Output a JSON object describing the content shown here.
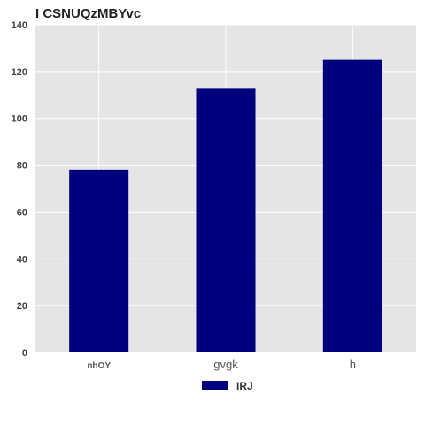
{
  "chart_data": {
    "type": "bar",
    "title": "I CSNUQzMBYvc",
    "xlabel": "",
    "ylabel": "",
    "categories": [
      "nhOY",
      "gvgk",
      "h"
    ],
    "series": [
      {
        "name": "IRJ",
        "values": [
          78,
          113,
          125
        ],
        "color": "#00007f"
      }
    ],
    "ylim": [
      0,
      140
    ],
    "yticks": [
      0,
      20,
      40,
      60,
      80,
      100,
      120,
      140
    ],
    "y_tick_labels": [
      "0",
      "20",
      "40",
      "60",
      "80",
      "100",
      "120",
      "140"
    ],
    "grid": true,
    "legend_position": "bottom-center",
    "plot_background": "#e5e5e5",
    "grid_color": "#ffffff"
  }
}
